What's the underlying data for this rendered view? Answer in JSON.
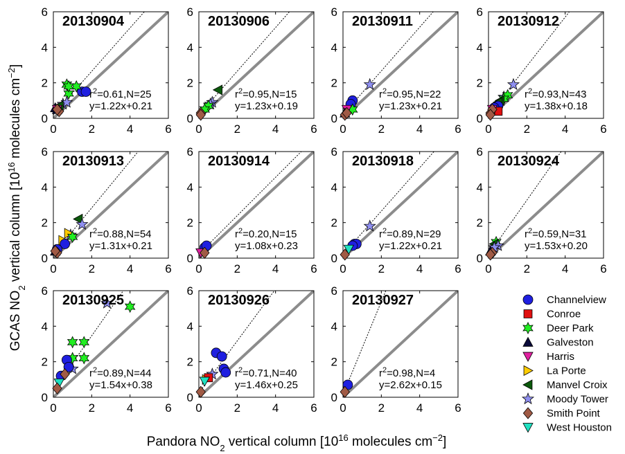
{
  "chart_data": {
    "type": "scatter",
    "xlabel": "Pandora NO2 vertical column [10^16 molecules cm^-2]",
    "ylabel": "GCAS NO2 vertical column [10^16 molecules cm^-2]",
    "xlim": [
      0,
      6
    ],
    "ylim": [
      0,
      6
    ],
    "ticks": [
      0,
      2,
      4,
      6
    ],
    "stations": [
      {
        "name": "Channelview",
        "marker": "circle",
        "color": "#1f1fe0"
      },
      {
        "name": "Conroe",
        "marker": "square",
        "color": "#e01010"
      },
      {
        "name": "Deer Park",
        "marker": "hexagram",
        "color": "#22ee22"
      },
      {
        "name": "Galveston",
        "marker": "triangle-up",
        "color": "#0a0a3a"
      },
      {
        "name": "Harris",
        "marker": "triangle-down",
        "color": "#e020a0"
      },
      {
        "name": "La Porte",
        "marker": "triangle-right",
        "color": "#ffcc00"
      },
      {
        "name": "Manvel Croix",
        "marker": "triangle-left",
        "color": "#0c5a0c"
      },
      {
        "name": "Moody Tower",
        "marker": "pentagram",
        "color": "#8f8ff0"
      },
      {
        "name": "Smith Point",
        "marker": "diamond",
        "color": "#a05a45"
      },
      {
        "name": "West Houston",
        "marker": "triangle-down",
        "color": "#20e0c0"
      }
    ],
    "panels": [
      {
        "date": "20130904",
        "r2": "0.61",
        "n": "25",
        "fit_text": "y=1.22x+0.21",
        "slope": 1.22,
        "intercept": 0.21,
        "points": [
          {
            "s": "Channelview",
            "x": [
              1.5,
              1.7
            ],
            "y": [
              1.5,
              1.5
            ]
          },
          {
            "s": "Deer Park",
            "x": [
              0.7,
              0.8,
              1.2,
              0.8
            ],
            "y": [
              1.9,
              1.4,
              1.8,
              1.8
            ]
          },
          {
            "s": "Moody Tower",
            "x": [
              0.5,
              0.7
            ],
            "y": [
              0.8,
              0.9
            ]
          },
          {
            "s": "Galveston",
            "x": [
              0.1,
              0.2
            ],
            "y": [
              0.6,
              0.5
            ]
          },
          {
            "s": "Manvel Croix",
            "x": [
              0.3
            ],
            "y": [
              0.7
            ]
          },
          {
            "s": "Harris",
            "x": [
              0.2
            ],
            "y": [
              0.5
            ]
          },
          {
            "s": "Smith Point",
            "x": [
              0.3,
              0.2
            ],
            "y": [
              0.4,
              0.5
            ]
          }
        ]
      },
      {
        "date": "20130906",
        "r2": "0.95",
        "n": "15",
        "fit_text": "y=1.23x+0.19",
        "slope": 1.23,
        "intercept": 0.19,
        "points": [
          {
            "s": "Manvel Croix",
            "x": [
              1.0
            ],
            "y": [
              1.6
            ]
          },
          {
            "s": "Moody Tower",
            "x": [
              0.7,
              0.6
            ],
            "y": [
              0.9,
              0.8
            ]
          },
          {
            "s": "Deer Park",
            "x": [
              0.5,
              0.3
            ],
            "y": [
              0.7,
              0.5
            ]
          },
          {
            "s": "Smith Point",
            "x": [
              0.1,
              0.1
            ],
            "y": [
              0.3,
              0.2
            ]
          }
        ]
      },
      {
        "date": "20130911",
        "r2": "0.95",
        "n": "22",
        "fit_text": "y=1.23x+0.21",
        "slope": 1.23,
        "intercept": 0.21,
        "points": [
          {
            "s": "Moody Tower",
            "x": [
              1.4
            ],
            "y": [
              1.9
            ]
          },
          {
            "s": "Channelview",
            "x": [
              0.5,
              0.4
            ],
            "y": [
              1.0,
              0.8
            ]
          },
          {
            "s": "Deer Park",
            "x": [
              0.5
            ],
            "y": [
              0.5
            ]
          },
          {
            "s": "Harris",
            "x": [
              0.2
            ],
            "y": [
              0.5
            ]
          },
          {
            "s": "Galveston",
            "x": [
              0.1
            ],
            "y": [
              0.3
            ]
          },
          {
            "s": "Smith Point",
            "x": [
              0.1,
              0.2
            ],
            "y": [
              0.2,
              0.3
            ]
          }
        ]
      },
      {
        "date": "20130912",
        "r2": "0.93",
        "n": "43",
        "fit_text": "y=1.38x+0.18",
        "slope": 1.38,
        "intercept": 0.18,
        "points": [
          {
            "s": "Moody Tower",
            "x": [
              1.3,
              0.8
            ],
            "y": [
              1.9,
              1.2
            ]
          },
          {
            "s": "Deer Park",
            "x": [
              1.0,
              0.8
            ],
            "y": [
              1.3,
              1.1
            ]
          },
          {
            "s": "Manvel Croix",
            "x": [
              0.6,
              0.5
            ],
            "y": [
              1.0,
              0.9
            ]
          },
          {
            "s": "Channelview",
            "x": [
              0.5,
              0.3
            ],
            "y": [
              0.7,
              0.6
            ]
          },
          {
            "s": "Conroe",
            "x": [
              0.5
            ],
            "y": [
              0.4
            ]
          },
          {
            "s": "Harris",
            "x": [
              0.2
            ],
            "y": [
              0.5
            ]
          },
          {
            "s": "Smith Point",
            "x": [
              0.1,
              0.2,
              0.1
            ],
            "y": [
              0.3,
              0.5,
              0.2
            ]
          }
        ]
      },
      {
        "date": "20130913",
        "r2": "0.88",
        "n": "54",
        "fit_text": "y=1.31x+0.21",
        "slope": 1.31,
        "intercept": 0.21,
        "points": [
          {
            "s": "Manvel Croix",
            "x": [
              1.3
            ],
            "y": [
              2.2
            ]
          },
          {
            "s": "Moody Tower",
            "x": [
              1.5,
              0.9
            ],
            "y": [
              1.9,
              1.3
            ]
          },
          {
            "s": "La Porte",
            "x": [
              0.8,
              0.5
            ],
            "y": [
              1.4,
              1.0
            ]
          },
          {
            "s": "Deer Park",
            "x": [
              1.0
            ],
            "y": [
              1.2
            ]
          },
          {
            "s": "Channelview",
            "x": [
              0.6,
              0.2
            ],
            "y": [
              0.8,
              0.5
            ]
          },
          {
            "s": "Galveston",
            "x": [
              0.1
            ],
            "y": [
              0.4
            ]
          },
          {
            "s": "Smith Point",
            "x": [
              0.2,
              0.1
            ],
            "y": [
              0.3,
              0.4
            ]
          }
        ]
      },
      {
        "date": "20130914",
        "r2": "0.20",
        "n": "15",
        "fit_text": "y=1.08x+0.23",
        "slope": 1.08,
        "intercept": 0.23,
        "points": [
          {
            "s": "Channelview",
            "x": [
              0.3,
              0.4
            ],
            "y": [
              0.6,
              0.7
            ]
          },
          {
            "s": "Harris",
            "x": [
              0.1
            ],
            "y": [
              0.3
            ]
          },
          {
            "s": "Smith Point",
            "x": [
              0.3
            ],
            "y": [
              0.3
            ]
          }
        ]
      },
      {
        "date": "20130918",
        "r2": "0.89",
        "n": "29",
        "fit_text": "y=1.22x+0.21",
        "slope": 1.22,
        "intercept": 0.21,
        "points": [
          {
            "s": "Moody Tower",
            "x": [
              1.4
            ],
            "y": [
              1.8
            ]
          },
          {
            "s": "Channelview",
            "x": [
              0.6,
              0.7,
              0.5
            ],
            "y": [
              0.8,
              0.8,
              0.7
            ]
          },
          {
            "s": "West Houston",
            "x": [
              0.3
            ],
            "y": [
              0.5
            ]
          },
          {
            "s": "Smith Point",
            "x": [
              0.1
            ],
            "y": [
              0.2
            ]
          }
        ]
      },
      {
        "date": "20130924",
        "r2": "0.59",
        "n": "31",
        "fit_text": "y=1.53x+0.20",
        "slope": 1.53,
        "intercept": 0.2,
        "points": [
          {
            "s": "Deer Park",
            "x": [
              0.4
            ],
            "y": [
              0.9
            ]
          },
          {
            "s": "Manvel Croix",
            "x": [
              0.3
            ],
            "y": [
              0.8
            ]
          },
          {
            "s": "Moody Tower",
            "x": [
              0.5,
              0.3
            ],
            "y": [
              0.7,
              0.6
            ]
          },
          {
            "s": "Galveston",
            "x": [
              0.1
            ],
            "y": [
              0.4
            ]
          },
          {
            "s": "Smith Point",
            "x": [
              0.2,
              0.1
            ],
            "y": [
              0.3,
              0.2
            ]
          }
        ]
      },
      {
        "date": "20130925",
        "r2": "0.89",
        "n": "44",
        "fit_text": "y=1.54x+0.38",
        "slope": 1.54,
        "intercept": 0.38,
        "points": [
          {
            "s": "Moody Tower",
            "x": [
              2.8,
              1.0
            ],
            "y": [
              5.3,
              1.6
            ]
          },
          {
            "s": "Deer Park",
            "x": [
              4.0,
              1.0,
              1.6,
              1.6,
              1.0
            ],
            "y": [
              5.1,
              3.1,
              3.1,
              2.2,
              2.2
            ]
          },
          {
            "s": "Channelview",
            "x": [
              0.7,
              0.8,
              0.4
            ],
            "y": [
              2.1,
              1.7,
              1.2
            ]
          },
          {
            "s": "West Houston",
            "x": [
              0.3
            ],
            "y": [
              0.8
            ]
          },
          {
            "s": "Smith Point",
            "x": [
              0.6,
              0.2
            ],
            "y": [
              1.3,
              0.5
            ]
          }
        ]
      },
      {
        "date": "20130926",
        "r2": "0.71",
        "n": "40",
        "fit_text": "y=1.46x+0.25",
        "slope": 1.46,
        "intercept": 0.25,
        "points": [
          {
            "s": "Channelview",
            "x": [
              0.9,
              1.2,
              1.3,
              1.4
            ],
            "y": [
              2.5,
              2.3,
              1.6,
              1.4
            ]
          },
          {
            "s": "Moody Tower",
            "x": [
              0.7
            ],
            "y": [
              1.3
            ]
          },
          {
            "s": "La Porte",
            "x": [
              0.4
            ],
            "y": [
              1.0
            ]
          },
          {
            "s": "Conroe",
            "x": [
              0.5
            ],
            "y": [
              1.1
            ]
          },
          {
            "s": "West Houston",
            "x": [
              0.3
            ],
            "y": [
              0.9
            ]
          },
          {
            "s": "Smith Point",
            "x": [
              0.1
            ],
            "y": [
              0.3
            ]
          }
        ]
      },
      {
        "date": "20130927",
        "r2": "0.98",
        "n": "4",
        "fit_text": "y=2.62x+0.15",
        "slope": 2.62,
        "intercept": 0.15,
        "points": [
          {
            "s": "Channelview",
            "x": [
              0.25
            ],
            "y": [
              0.7
            ]
          },
          {
            "s": "Smith Point",
            "x": [
              0.1
            ],
            "y": [
              0.3
            ]
          }
        ]
      }
    ]
  }
}
